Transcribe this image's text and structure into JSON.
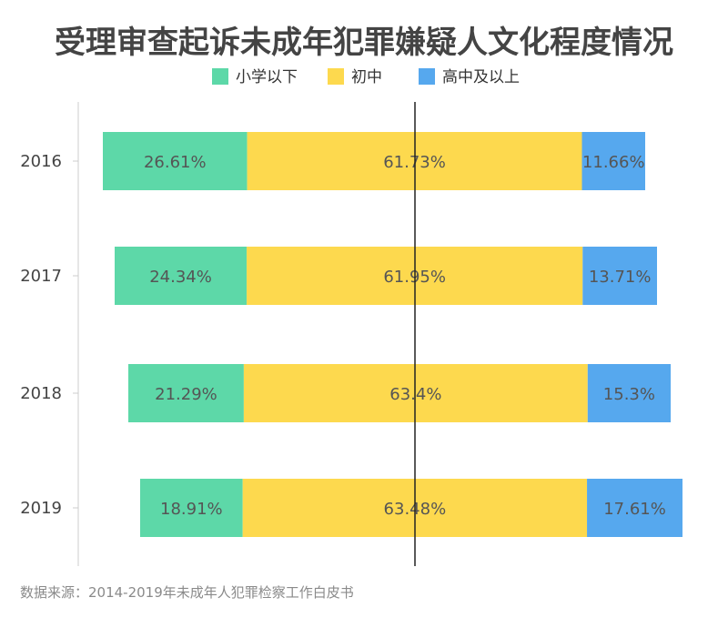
{
  "chart_data": {
    "type": "bar",
    "stacked": true,
    "orientation": "horizontal",
    "normalized": "percent",
    "title": "受理审查起诉未成年犯罪嫌疑人文化程度情况",
    "categories": [
      "2016",
      "2017",
      "2018",
      "2019"
    ],
    "series": [
      {
        "name": "小学以下",
        "color": "#5dd8a8",
        "values": [
          26.61,
          24.34,
          21.29,
          18.91
        ],
        "labels": [
          "26.61%",
          "24.34%",
          "21.29%",
          "18.91%"
        ]
      },
      {
        "name": "初中",
        "color": "#fdd94e",
        "values": [
          61.73,
          61.95,
          63.4,
          63.48
        ],
        "labels": [
          "61.73%",
          "61.95%",
          "63.4%",
          "63.48%"
        ]
      },
      {
        "name": "高中及以上",
        "color": "#56a8ee",
        "values": [
          11.66,
          13.71,
          15.3,
          17.61
        ],
        "labels": [
          "11.66%",
          "13.71%",
          "15.3%",
          "17.61%"
        ]
      }
    ],
    "legend_position": "top-center",
    "xlabel": "",
    "ylabel": "",
    "grid": false,
    "reference_line": "vertical-center"
  },
  "source": "数据来源：2014-2019年未成年人犯罪检察工作白皮书"
}
